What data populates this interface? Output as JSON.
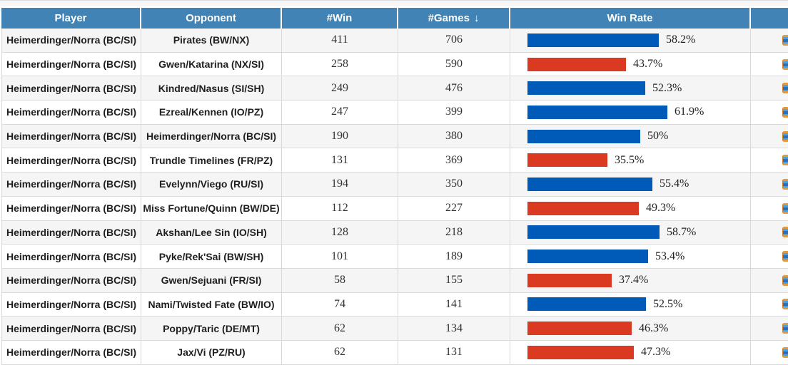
{
  "table": {
    "columns": [
      {
        "key": "player",
        "label": "Player"
      },
      {
        "key": "opponent",
        "label": "Opponent"
      },
      {
        "key": "win",
        "label": "#Win"
      },
      {
        "key": "games",
        "label": "#Games"
      },
      {
        "key": "winrate",
        "label": "Win Rate"
      },
      {
        "key": "actions",
        "label": ""
      }
    ],
    "sort_icon": "↓",
    "sorted_column": "games",
    "rows": [
      {
        "player": "Heimerdinger/Norra (BC/SI)",
        "opponent": "Pirates (BW/NX)",
        "win": "411",
        "games": "706",
        "win_rate_label": "58.2%",
        "win_rate_value": 58.2,
        "bar_color": "blue"
      },
      {
        "player": "Heimerdinger/Norra (BC/SI)",
        "opponent": "Gwen/Katarina (NX/SI)",
        "win": "258",
        "games": "590",
        "win_rate_label": "43.7%",
        "win_rate_value": 43.7,
        "bar_color": "red"
      },
      {
        "player": "Heimerdinger/Norra (BC/SI)",
        "opponent": "Kindred/Nasus (SI/SH)",
        "win": "249",
        "games": "476",
        "win_rate_label": "52.3%",
        "win_rate_value": 52.3,
        "bar_color": "blue"
      },
      {
        "player": "Heimerdinger/Norra (BC/SI)",
        "opponent": "Ezreal/Kennen (IO/PZ)",
        "win": "247",
        "games": "399",
        "win_rate_label": "61.9%",
        "win_rate_value": 61.9,
        "bar_color": "blue"
      },
      {
        "player": "Heimerdinger/Norra (BC/SI)",
        "opponent": "Heimerdinger/Norra (BC/SI)",
        "win": "190",
        "games": "380",
        "win_rate_label": "50%",
        "win_rate_value": 50.0,
        "bar_color": "blue"
      },
      {
        "player": "Heimerdinger/Norra (BC/SI)",
        "opponent": "Trundle Timelines (FR/PZ)",
        "win": "131",
        "games": "369",
        "win_rate_label": "35.5%",
        "win_rate_value": 35.5,
        "bar_color": "red"
      },
      {
        "player": "Heimerdinger/Norra (BC/SI)",
        "opponent": "Evelynn/Viego (RU/SI)",
        "win": "194",
        "games": "350",
        "win_rate_label": "55.4%",
        "win_rate_value": 55.4,
        "bar_color": "blue"
      },
      {
        "player": "Heimerdinger/Norra (BC/SI)",
        "opponent": "Miss Fortune/Quinn (BW/DE)",
        "win": "112",
        "games": "227",
        "win_rate_label": "49.3%",
        "win_rate_value": 49.3,
        "bar_color": "red"
      },
      {
        "player": "Heimerdinger/Norra (BC/SI)",
        "opponent": "Akshan/Lee Sin (IO/SH)",
        "win": "128",
        "games": "218",
        "win_rate_label": "58.7%",
        "win_rate_value": 58.7,
        "bar_color": "blue"
      },
      {
        "player": "Heimerdinger/Norra (BC/SI)",
        "opponent": "Pyke/Rek'Sai (BW/SH)",
        "win": "101",
        "games": "189",
        "win_rate_label": "53.4%",
        "win_rate_value": 53.4,
        "bar_color": "blue"
      },
      {
        "player": "Heimerdinger/Norra (BC/SI)",
        "opponent": "Gwen/Sejuani (FR/SI)",
        "win": "58",
        "games": "155",
        "win_rate_label": "37.4%",
        "win_rate_value": 37.4,
        "bar_color": "red"
      },
      {
        "player": "Heimerdinger/Norra (BC/SI)",
        "opponent": "Nami/Twisted Fate (BW/IO)",
        "win": "74",
        "games": "141",
        "win_rate_label": "52.5%",
        "win_rate_value": 52.5,
        "bar_color": "blue"
      },
      {
        "player": "Heimerdinger/Norra (BC/SI)",
        "opponent": "Poppy/Taric (DE/MT)",
        "win": "62",
        "games": "134",
        "win_rate_label": "46.3%",
        "win_rate_value": 46.3,
        "bar_color": "red"
      },
      {
        "player": "Heimerdinger/Norra (BC/SI)",
        "opponent": "Jax/Vi (PZ/RU)",
        "win": "62",
        "games": "131",
        "win_rate_label": "47.3%",
        "win_rate_value": 47.3,
        "bar_color": "red"
      }
    ]
  },
  "colors": {
    "header_bg": "#4183B4",
    "bar_blue": "#005BB8",
    "bar_red": "#D93A21",
    "row_alt_bg": "#F5F5F5"
  }
}
